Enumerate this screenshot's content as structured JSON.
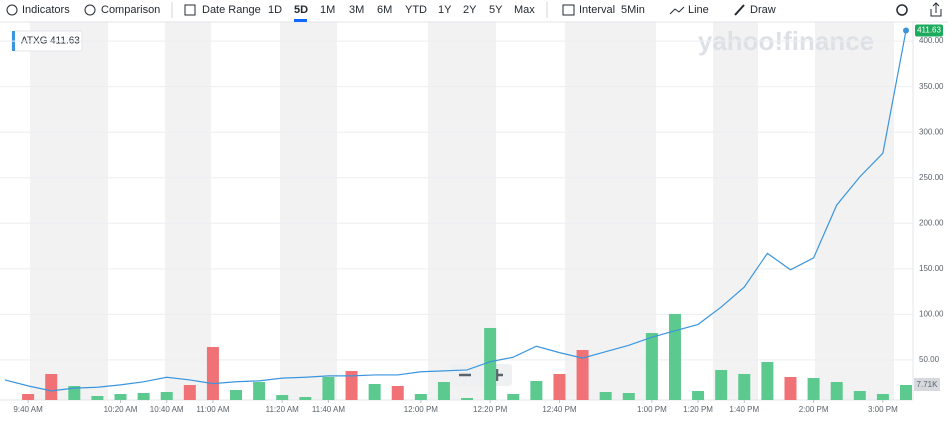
{
  "toolbar": {
    "indicators": "Indicators",
    "comparison": "Comparison",
    "date_range": "Date Range",
    "ranges": [
      "1D",
      "5D",
      "1M",
      "3M",
      "6M",
      "YTD",
      "1Y",
      "2Y",
      "5Y",
      "Max"
    ],
    "active_range": 1,
    "interval_label": "Interval",
    "interval": "5Min",
    "chart_type": "Line",
    "draw": "Draw"
  },
  "watermark": "yahoo!finance",
  "chart_data": {
    "type": "line",
    "categories": [
      null,
      "9:40 AM",
      null,
      null,
      null,
      "10:20 AM",
      null,
      "10:40 AM",
      null,
      "11:00 AM",
      null,
      null,
      "11:20 AM",
      null,
      "11:40 AM",
      null,
      null,
      null,
      "12:00 PM",
      null,
      null,
      "12:20 PM",
      null,
      null,
      "12:40 PM",
      null,
      null,
      null,
      "1:00 PM",
      null,
      "1:20 PM",
      null,
      "1:40 PM",
      null,
      null,
      "2:00 PM",
      null,
      null,
      "3:00 PM",
      null
    ],
    "series": [
      {
        "name": "ATXG",
        "color": "#3b95dc",
        "values": [
          28,
          21.5,
          16,
          19,
          20,
          22.6,
          26,
          31,
          28,
          24,
          26,
          27,
          30,
          31,
          32.5,
          32.5,
          33.5,
          33.5,
          37,
          38,
          39,
          48,
          53,
          65,
          58,
          52,
          59,
          66,
          75,
          82,
          89,
          108,
          130,
          167,
          149,
          162,
          220,
          251,
          277,
          411.63
        ]
      }
    ],
    "volume": {
      "values": [
        null,
        3084,
        13364,
        7196,
        2056,
        3084,
        3598,
        4112,
        7710,
        27242,
        5140,
        9252,
        2570,
        1542,
        11822,
        14906,
        8224,
        7196,
        3084,
        9252,
        1028,
        37008,
        3084,
        9766,
        13364,
        25700,
        4112,
        3598,
        34438,
        44204,
        4626,
        15420,
        13364,
        19532,
        11822,
        11308,
        9252,
        4626,
        3084,
        7710
      ],
      "value_labels": [
        null,
        null,
        null,
        null,
        null,
        null,
        null,
        null,
        null,
        null,
        null,
        null,
        null,
        null,
        null,
        null,
        null,
        null,
        null,
        null,
        null,
        null,
        null,
        null,
        null,
        null,
        null,
        null,
        null,
        null,
        null,
        null,
        null,
        null,
        null,
        null,
        null,
        null,
        null,
        "7.71K"
      ],
      "colors": [
        null,
        "#f07176",
        "#f07176",
        "#5cc98e",
        "#5cc98e",
        "#5cc98e",
        "#5cc98e",
        "#5cc98e",
        "#f07176",
        "#f07176",
        "#5cc98e",
        "#5cc98e",
        "#5cc98e",
        "#5cc98e",
        "#5cc98e",
        "#f07176",
        "#5cc98e",
        "#f07176",
        "#5cc98e",
        "#5cc98e",
        "#5cc98e",
        "#5cc98e",
        "#5cc98e",
        "#5cc98e",
        "#f07176",
        "#f07176",
        "#5cc98e",
        "#5cc98e",
        "#5cc98e",
        "#5cc98e",
        "#5cc98e",
        "#5cc98e",
        "#5cc98e",
        "#5cc98e",
        "#f07176",
        "#5cc98e",
        "#5cc98e",
        "#5cc98e",
        "#5cc98e",
        "#5cc98e"
      ],
      "ylim": [
        0,
        100000
      ]
    },
    "ylim": [
      6,
      421
    ],
    "yticks": [
      {
        "value": 50,
        "label": "50.00"
      },
      {
        "value": 100,
        "label": "100.00"
      },
      {
        "value": 150,
        "label": "150.00"
      },
      {
        "value": 200,
        "label": "200.00"
      },
      {
        "value": 250,
        "label": "250.00"
      },
      {
        "value": 300,
        "label": "300.00"
      },
      {
        "value": 350,
        "label": "350.00"
      },
      {
        "value": 400,
        "label": "400.00"
      }
    ],
    "grid": true
  }
}
